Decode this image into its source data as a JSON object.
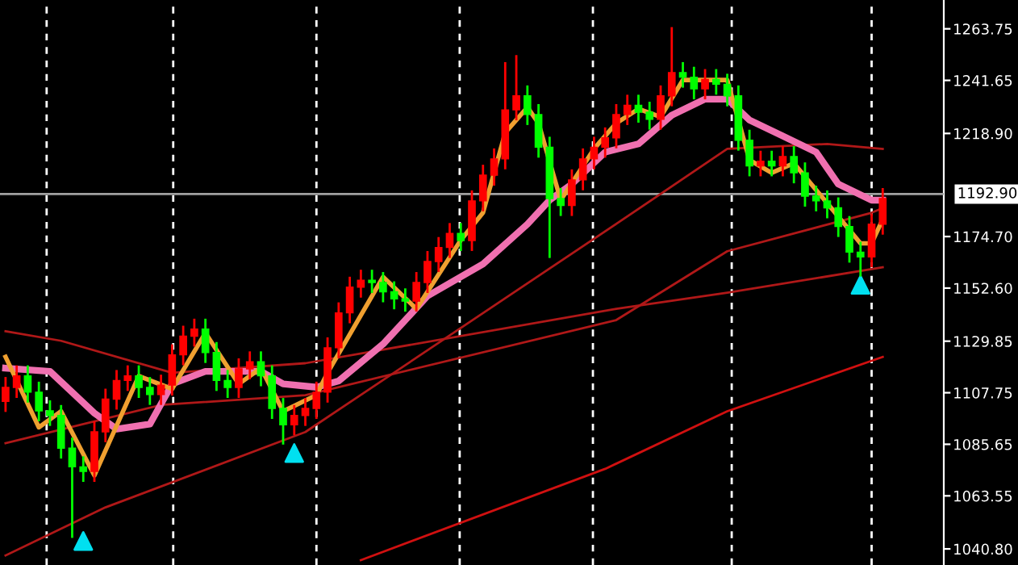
{
  "chart_data": {
    "type": "candlestick",
    "categories": [
      null,
      null,
      null,
      null,
      null,
      null,
      null,
      null,
      null,
      null,
      null,
      null,
      null,
      null,
      null,
      null,
      null,
      null,
      null,
      null,
      null,
      null,
      null,
      null,
      null,
      null,
      null,
      null,
      null,
      null,
      null,
      null,
      null,
      null,
      null,
      null,
      null,
      null,
      null,
      null,
      null,
      null,
      null,
      null,
      null,
      null,
      null,
      null,
      null,
      null,
      null,
      null,
      null,
      null,
      null,
      null,
      null,
      null,
      null,
      null,
      null,
      null,
      null,
      null,
      null,
      null,
      null,
      null,
      null,
      null,
      null,
      null,
      null,
      null,
      null,
      null,
      null,
      null,
      null,
      null
    ],
    "ohlc": [
      [
        1104,
        1114,
        1100,
        1110
      ],
      [
        1110,
        1119,
        1106,
        1115
      ],
      [
        1115,
        1119,
        1104,
        1108
      ],
      [
        1108,
        1112,
        1096,
        1100
      ],
      [
        1100,
        1104,
        1094,
        1098
      ],
      [
        1098,
        1102,
        1080,
        1084
      ],
      [
        1084,
        1088,
        1046,
        1076
      ],
      [
        1076,
        1080,
        1070,
        1074
      ],
      [
        1074,
        1095,
        1070,
        1091
      ],
      [
        1091,
        1109,
        1087,
        1105
      ],
      [
        1105,
        1117,
        1101,
        1113
      ],
      [
        1113,
        1119,
        1109,
        1115
      ],
      [
        1115,
        1119,
        1106,
        1110
      ],
      [
        1110,
        1114,
        1103,
        1107
      ],
      [
        1107,
        1115,
        1103,
        1111
      ],
      [
        1111,
        1128,
        1107,
        1124
      ],
      [
        1124,
        1136,
        1120,
        1132
      ],
      [
        1132,
        1139,
        1128,
        1135
      ],
      [
        1135,
        1139,
        1121,
        1125
      ],
      [
        1125,
        1129,
        1109,
        1113
      ],
      [
        1113,
        1117,
        1106,
        1110
      ],
      [
        1110,
        1122,
        1106,
        1118
      ],
      [
        1118,
        1125,
        1114,
        1121
      ],
      [
        1121,
        1125,
        1111,
        1115
      ],
      [
        1115,
        1119,
        1097,
        1101
      ],
      [
        1101,
        1105,
        1086,
        1094
      ],
      [
        1094,
        1102,
        1090,
        1098
      ],
      [
        1098,
        1105,
        1094,
        1101
      ],
      [
        1101,
        1112,
        1097,
        1108
      ],
      [
        1108,
        1131,
        1104,
        1127
      ],
      [
        1127,
        1146,
        1123,
        1142
      ],
      [
        1142,
        1157,
        1138,
        1153
      ],
      [
        1153,
        1160,
        1149,
        1156
      ],
      [
        1156,
        1160,
        1151,
        1155
      ],
      [
        1155,
        1159,
        1147,
        1151
      ],
      [
        1151,
        1155,
        1144,
        1148
      ],
      [
        1148,
        1152,
        1143,
        1147
      ],
      [
        1147,
        1159,
        1143,
        1155
      ],
      [
        1155,
        1168,
        1151,
        1164
      ],
      [
        1164,
        1174,
        1160,
        1170
      ],
      [
        1170,
        1180,
        1166,
        1176
      ],
      [
        1176,
        1180,
        1169,
        1173
      ],
      [
        1173,
        1194,
        1169,
        1190
      ],
      [
        1190,
        1205,
        1186,
        1201
      ],
      [
        1201,
        1212,
        1197,
        1208
      ],
      [
        1208,
        1249,
        1204,
        1229
      ],
      [
        1229,
        1252,
        1225,
        1235
      ],
      [
        1235,
        1239,
        1223,
        1227
      ],
      [
        1227,
        1231,
        1209,
        1213
      ],
      [
        1213,
        1217,
        1166,
        1191
      ],
      [
        1191,
        1195,
        1184,
        1188
      ],
      [
        1188,
        1203,
        1184,
        1199
      ],
      [
        1199,
        1212,
        1195,
        1208
      ],
      [
        1208,
        1217,
        1204,
        1213
      ],
      [
        1213,
        1221,
        1209,
        1217
      ],
      [
        1217,
        1231,
        1213,
        1227
      ],
      [
        1227,
        1235,
        1223,
        1231
      ],
      [
        1231,
        1235,
        1224,
        1228
      ],
      [
        1228,
        1232,
        1221,
        1225
      ],
      [
        1225,
        1239,
        1221,
        1235
      ],
      [
        1235,
        1264,
        1231,
        1245
      ],
      [
        1245,
        1249,
        1239,
        1243
      ],
      [
        1243,
        1247,
        1234,
        1238
      ],
      [
        1238,
        1246,
        1234,
        1242
      ],
      [
        1242,
        1246,
        1236,
        1240
      ],
      [
        1240,
        1244,
        1231,
        1235
      ],
      [
        1235,
        1239,
        1212,
        1216
      ],
      [
        1216,
        1220,
        1201,
        1205
      ],
      [
        1205,
        1211,
        1201,
        1207
      ],
      [
        1207,
        1211,
        1201,
        1205
      ],
      [
        1205,
        1213,
        1201,
        1209
      ],
      [
        1209,
        1213,
        1198,
        1202
      ],
      [
        1202,
        1206,
        1188,
        1192
      ],
      [
        1192,
        1196,
        1186,
        1190
      ],
      [
        1190,
        1194,
        1183,
        1187
      ],
      [
        1187,
        1191,
        1175,
        1179
      ],
      [
        1179,
        1183,
        1164,
        1168
      ],
      [
        1168,
        1172,
        1158,
        1166
      ],
      [
        1166,
        1184,
        1162,
        1180
      ],
      [
        1180,
        1195,
        1176,
        1191
      ]
    ],
    "colors": [
      "#ff0000",
      "#ff0000",
      "#00ff00",
      "#00ff00",
      "#00ff00",
      "#00ff00",
      "#00ff00",
      "#00ff00",
      "#ff0000",
      "#ff0000",
      "#ff0000",
      "#ff0000",
      "#00ff00",
      "#00ff00",
      "#ff0000",
      "#ff0000",
      "#ff0000",
      "#ff0000",
      "#00ff00",
      "#00ff00",
      "#00ff00",
      "#ff0000",
      "#ff0000",
      "#00ff00",
      "#00ff00",
      "#00ff00",
      "#ff0000",
      "#ff0000",
      "#ff0000",
      "#ff0000",
      "#ff0000",
      "#ff0000",
      "#ff0000",
      "#00ff00",
      "#00ff00",
      "#00ff00",
      "#00ff00",
      "#ff0000",
      "#ff0000",
      "#ff0000",
      "#ff0000",
      "#00ff00",
      "#ff0000",
      "#ff0000",
      "#ff0000",
      "#ff0000",
      "#ff0000",
      "#00ff00",
      "#00ff00",
      "#00ff00",
      "#00ff00",
      "#ff0000",
      "#ff0000",
      "#ff0000",
      "#ff0000",
      "#ff0000",
      "#ff0000",
      "#00ff00",
      "#00ff00",
      "#ff0000",
      "#ff0000",
      "#00ff00",
      "#00ff00",
      "#ff0000",
      "#00ff00",
      "#00ff00",
      "#00ff00",
      "#00ff00",
      "#ff0000",
      "#00ff00",
      "#ff0000",
      "#00ff00",
      "#00ff00",
      "#00ff00",
      "#00ff00",
      "#00ff00",
      "#00ff00",
      "#00ff00",
      "#ff0000",
      "#ff0000"
    ],
    "series": [
      {
        "type": "line",
        "color": "#b01818",
        "values": [
          1038.0,
          null,
          null,
          null,
          null,
          null,
          null,
          null,
          null,
          1058.6,
          null,
          null,
          null,
          null,
          null,
          null,
          null,
          null,
          null,
          null,
          null,
          null,
          null,
          null,
          null,
          null,
          null,
          1090.9,
          null,
          null,
          null,
          null,
          null,
          null,
          null,
          null,
          null,
          null,
          null,
          null,
          null,
          null,
          null,
          null,
          null,
          null,
          null,
          null,
          null,
          null,
          null,
          null,
          null,
          null,
          null,
          1180.1,
          null,
          null,
          null,
          null,
          null,
          null,
          null,
          null,
          null,
          1212.3,
          null,
          null,
          null,
          null,
          null,
          null,
          null,
          null,
          1214.4,
          null,
          null,
          null,
          null,
          1212.3
        ]
      },
      {
        "type": "line",
        "color": "#b01818",
        "values": [
          1134.1,
          null,
          null,
          null,
          null,
          1130.0,
          null,
          null,
          null,
          null,
          null,
          null,
          null,
          null,
          null,
          1116.3,
          null,
          null,
          null,
          null,
          null,
          null,
          null,
          null,
          null,
          null,
          null,
          1120.4,
          null,
          null,
          null,
          null,
          null,
          null,
          null,
          null,
          null,
          null,
          null,
          null,
          null,
          null,
          null,
          null,
          null,
          null,
          null,
          null,
          null,
          null,
          null,
          null,
          null,
          null,
          null,
          1143.7,
          null,
          null,
          null,
          null,
          null,
          null,
          null,
          null,
          null,
          1150.6,
          null,
          null,
          null,
          null,
          null,
          null,
          null,
          null,
          null,
          null,
          null,
          null,
          null,
          1161.5
        ]
      },
      {
        "type": "line",
        "color": "#b01818",
        "values": [
          1086.1,
          null,
          null,
          null,
          null,
          null,
          null,
          null,
          null,
          null,
          null,
          null,
          null,
          null,
          1102.5,
          null,
          null,
          null,
          null,
          null,
          null,
          null,
          null,
          null,
          null,
          null,
          null,
          1106.7,
          null,
          null,
          null,
          null,
          null,
          null,
          null,
          null,
          null,
          null,
          null,
          null,
          null,
          null,
          null,
          null,
          null,
          null,
          null,
          null,
          null,
          null,
          null,
          null,
          null,
          null,
          null,
          1138.9,
          null,
          null,
          null,
          null,
          null,
          null,
          null,
          null,
          null,
          1168.4,
          null,
          null,
          null,
          null,
          null,
          null,
          null,
          null,
          null,
          null,
          null,
          null,
          1184.9,
          1186.9
        ]
      },
      {
        "type": "line",
        "color": "#d01010",
        "values": [
          null,
          null,
          null,
          null,
          null,
          null,
          null,
          null,
          null,
          null,
          null,
          null,
          null,
          null,
          null,
          null,
          null,
          null,
          null,
          null,
          null,
          null,
          null,
          null,
          null,
          null,
          null,
          null,
          null,
          null,
          null,
          null,
          1036.0,
          null,
          null,
          null,
          null,
          null,
          null,
          null,
          null,
          null,
          null,
          null,
          null,
          null,
          null,
          null,
          null,
          null,
          null,
          null,
          null,
          null,
          1075.1,
          null,
          null,
          null,
          null,
          null,
          null,
          null,
          null,
          null,
          null,
          1099.8,
          null,
          null,
          null,
          null,
          null,
          null,
          null,
          null,
          null,
          null,
          null,
          null,
          null,
          1123.1
        ]
      },
      {
        "type": "line",
        "color": "#f070b0",
        "values": [
          1118.3,
          null,
          null,
          null,
          1116.9,
          null,
          null,
          null,
          1099.0,
          null,
          1092.2,
          null,
          null,
          1094.3,
          null,
          1111.5,
          null,
          null,
          1116.9,
          null,
          null,
          null,
          null,
          1116.9,
          null,
          1111.5,
          null,
          null,
          1110.1,
          null,
          1112.8,
          null,
          null,
          null,
          1128.6,
          null,
          null,
          null,
          1149.2,
          null,
          null,
          null,
          null,
          1162.9,
          null,
          null,
          null,
          1180.0,
          null,
          1190.3,
          null,
          1197.2,
          null,
          null,
          1210.9,
          null,
          null,
          1214.4,
          null,
          null,
          1226.7,
          null,
          null,
          1233.6,
          null,
          1233.6,
          null,
          1224.6,
          null,
          null,
          1217.8,
          null,
          null,
          1210.9,
          null,
          1197.2,
          null,
          null,
          1190.3,
          1190.3
        ]
      },
      {
        "type": "line",
        "color": "#f0a030",
        "values": [
          1123.1,
          null,
          null,
          1092.9,
          null,
          1099.8,
          null,
          null,
          1072.3,
          null,
          null,
          null,
          1114.9,
          null,
          null,
          1109.4,
          null,
          null,
          1133.4,
          null,
          null,
          1111.5,
          null,
          1118.3,
          null,
          1099.8,
          null,
          null,
          1106.7,
          1116.3,
          null,
          null,
          null,
          null,
          1157.4,
          null,
          null,
          1143.7,
          null,
          null,
          null,
          1173.2,
          null,
          1184.9,
          null,
          1219.2,
          null,
          1230.1,
          1223.3,
          null,
          1190.3,
          null,
          null,
          1212.3,
          null,
          1223.3,
          null,
          1229.4,
          null,
          1226.0,
          null,
          1241.8,
          null,
          null,
          null,
          1241.8,
          null,
          1207.5,
          null,
          1202.0,
          null,
          1206.1,
          null,
          null,
          1189.0,
          null,
          null,
          1171.8,
          1171.8,
          1182.1
        ]
      },
      {
        "type": "scatter",
        "color": "#00e0f0",
        "marker": "triangle",
        "values": [
          null,
          null,
          null,
          null,
          null,
          null,
          null,
          1044.2,
          null,
          null,
          null,
          null,
          null,
          null,
          null,
          null,
          null,
          null,
          null,
          null,
          null,
          null,
          null,
          null,
          null,
          null,
          1081.9,
          null,
          null,
          null,
          null,
          null,
          null,
          null,
          null,
          null,
          null,
          null,
          null,
          null,
          null,
          null,
          null,
          null,
          null,
          null,
          null,
          null,
          null,
          null,
          null,
          null,
          null,
          null,
          null,
          null,
          null,
          null,
          null,
          null,
          null,
          null,
          null,
          null,
          null,
          null,
          null,
          null,
          null,
          null,
          null,
          null,
          null,
          null,
          null,
          null,
          null,
          1154.0,
          null,
          null
        ]
      }
    ],
    "ylim": [
      1033.9,
      1276.1
    ],
    "yticks": [
      {
        "value": 1040.8,
        "label": "1040.80"
      },
      {
        "value": 1063.55,
        "label": "1063.55"
      },
      {
        "value": 1085.65,
        "label": "1085.65"
      },
      {
        "value": 1107.75,
        "label": "1107.75"
      },
      {
        "value": 1129.85,
        "label": "1129.85"
      },
      {
        "value": 1152.6,
        "label": "1152.60"
      },
      {
        "value": 1174.7,
        "label": "1174.70"
      },
      {
        "value": 1218.9,
        "label": "1218.90"
      },
      {
        "value": 1241.65,
        "label": "1241.65"
      },
      {
        "value": 1263.75,
        "label": "1263.75"
      }
    ],
    "ref_lines": [
      {
        "axis": "y",
        "value": 1192.9,
        "label": "1192.90",
        "color": "#a0a0a0"
      }
    ],
    "grid": "x",
    "tick_labels": "y"
  }
}
